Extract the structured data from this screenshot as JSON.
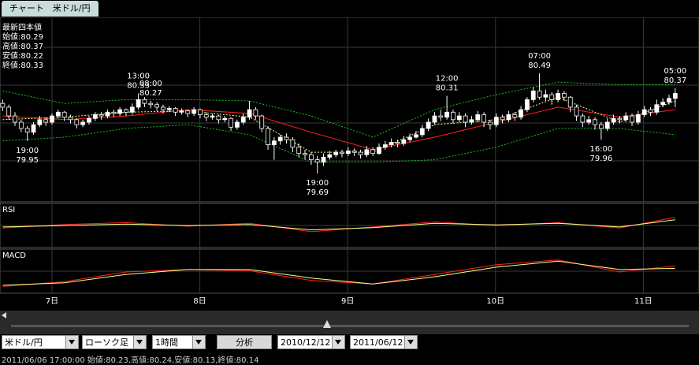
{
  "tab": "チャート　米ドル/円",
  "latest": {
    "title": "最新四本値",
    "rows": [
      {
        "label": "始値:",
        "value": 80.29
      },
      {
        "label": "高値:",
        "value": 80.37
      },
      {
        "label": "安値:",
        "value": 80.22
      },
      {
        "label": "終値:",
        "value": 80.33
      }
    ]
  },
  "chart_data": {
    "type": "candlestick",
    "ylim": [
      79.47,
      80.9
    ],
    "candles": [
      [
        80.25,
        80.28,
        80.19,
        80.22
      ],
      [
        80.22,
        80.24,
        80.12,
        80.15
      ],
      [
        80.15,
        80.18,
        80.07,
        80.1
      ],
      [
        80.1,
        80.12,
        80.02,
        80.05
      ],
      [
        80.05,
        80.07,
        79.95,
        80.02
      ],
      [
        80.02,
        80.1,
        80.0,
        80.08
      ],
      [
        80.08,
        80.15,
        80.06,
        80.12
      ],
      [
        80.12,
        80.14,
        80.07,
        80.1
      ],
      [
        80.1,
        80.17,
        80.08,
        80.15
      ],
      [
        80.15,
        80.2,
        80.13,
        80.18
      ],
      [
        80.18,
        80.19,
        80.11,
        80.14
      ],
      [
        80.14,
        80.16,
        80.09,
        80.12
      ],
      [
        80.12,
        80.13,
        80.05,
        80.08
      ],
      [
        80.08,
        80.12,
        80.06,
        80.1
      ],
      [
        80.1,
        80.15,
        80.08,
        80.13
      ],
      [
        80.13,
        80.18,
        80.11,
        80.16
      ],
      [
        80.16,
        80.18,
        80.12,
        80.15
      ],
      [
        80.15,
        80.2,
        80.13,
        80.18
      ],
      [
        80.18,
        80.2,
        80.14,
        80.17
      ],
      [
        80.17,
        80.22,
        80.15,
        80.2
      ],
      [
        80.2,
        80.21,
        80.15,
        80.18
      ],
      [
        80.18,
        80.25,
        80.16,
        80.22
      ],
      [
        80.22,
        80.33,
        80.2,
        80.28
      ],
      [
        80.28,
        80.3,
        80.22,
        80.25
      ],
      [
        80.25,
        80.27,
        80.21,
        80.24
      ],
      [
        80.24,
        80.26,
        80.19,
        80.22
      ],
      [
        80.22,
        80.24,
        80.17,
        80.2
      ],
      [
        80.2,
        80.23,
        80.18,
        80.21
      ],
      [
        80.21,
        80.22,
        80.15,
        80.18
      ],
      [
        80.18,
        80.21,
        80.16,
        80.19
      ],
      [
        80.19,
        80.2,
        80.14,
        80.17
      ],
      [
        80.17,
        80.22,
        80.15,
        80.2
      ],
      [
        80.2,
        80.21,
        80.13,
        80.16
      ],
      [
        80.16,
        80.18,
        80.11,
        80.14
      ],
      [
        80.14,
        80.17,
        80.12,
        80.15
      ],
      [
        80.15,
        80.16,
        80.09,
        80.12
      ],
      [
        80.12,
        80.15,
        80.1,
        80.13
      ],
      [
        80.13,
        80.14,
        80.03,
        80.06
      ],
      [
        80.06,
        80.12,
        80.04,
        80.1
      ],
      [
        80.1,
        80.17,
        80.08,
        80.14
      ],
      [
        80.14,
        80.27,
        80.12,
        80.2
      ],
      [
        80.2,
        80.22,
        80.12,
        80.15
      ],
      [
        80.15,
        80.16,
        80.02,
        80.05
      ],
      [
        80.05,
        80.07,
        79.88,
        79.92
      ],
      [
        79.92,
        79.98,
        79.8,
        79.95
      ],
      [
        79.95,
        80.0,
        79.92,
        79.98
      ],
      [
        79.98,
        80.01,
        79.93,
        79.96
      ],
      [
        79.96,
        79.98,
        79.86,
        79.9
      ],
      [
        79.9,
        79.93,
        79.82,
        79.85
      ],
      [
        79.85,
        79.88,
        79.8,
        79.84
      ],
      [
        79.84,
        79.86,
        79.76,
        79.8
      ],
      [
        79.8,
        79.83,
        79.69,
        79.78
      ],
      [
        79.78,
        79.85,
        79.75,
        79.82
      ],
      [
        79.82,
        79.87,
        79.8,
        79.84
      ],
      [
        79.84,
        79.88,
        79.82,
        79.86
      ],
      [
        79.86,
        79.88,
        79.82,
        79.85
      ],
      [
        79.85,
        79.9,
        79.83,
        79.87
      ],
      [
        79.87,
        79.89,
        79.83,
        79.86
      ],
      [
        79.86,
        79.88,
        79.81,
        79.84
      ],
      [
        79.84,
        79.91,
        79.82,
        79.88
      ],
      [
        79.88,
        79.9,
        79.83,
        79.85
      ],
      [
        79.85,
        79.93,
        79.84,
        79.9
      ],
      [
        79.9,
        79.95,
        79.88,
        79.92
      ],
      [
        79.92,
        79.97,
        79.9,
        79.94
      ],
      [
        79.94,
        79.96,
        79.9,
        79.93
      ],
      [
        79.93,
        79.99,
        79.91,
        79.96
      ],
      [
        79.96,
        80.01,
        79.94,
        79.98
      ],
      [
        79.98,
        80.03,
        79.97,
        80.0
      ],
      [
        80.0,
        80.08,
        79.98,
        80.05
      ],
      [
        80.05,
        80.13,
        80.03,
        80.1
      ],
      [
        80.1,
        80.18,
        80.08,
        80.15
      ],
      [
        80.15,
        80.2,
        80.11,
        80.14
      ],
      [
        80.14,
        80.31,
        80.12,
        80.18
      ],
      [
        80.18,
        80.2,
        80.09,
        80.12
      ],
      [
        80.12,
        80.18,
        80.1,
        80.15
      ],
      [
        80.15,
        80.17,
        80.06,
        80.1
      ],
      [
        80.1,
        80.15,
        80.08,
        80.12
      ],
      [
        80.12,
        80.19,
        80.1,
        80.16
      ],
      [
        80.16,
        80.18,
        80.06,
        80.1
      ],
      [
        80.1,
        80.12,
        80.04,
        80.08
      ],
      [
        80.08,
        80.17,
        80.06,
        80.14
      ],
      [
        80.14,
        80.16,
        80.09,
        80.12
      ],
      [
        80.12,
        80.19,
        80.1,
        80.16
      ],
      [
        80.16,
        80.18,
        80.11,
        80.14
      ],
      [
        80.14,
        80.23,
        80.12,
        80.2
      ],
      [
        80.2,
        80.3,
        80.18,
        80.28
      ],
      [
        80.28,
        80.38,
        80.26,
        80.35
      ],
      [
        80.35,
        80.49,
        80.28,
        80.3
      ],
      [
        80.3,
        80.36,
        80.27,
        80.32
      ],
      [
        80.32,
        80.34,
        80.24,
        80.28
      ],
      [
        80.28,
        80.36,
        80.26,
        80.33
      ],
      [
        80.33,
        80.35,
        80.27,
        80.3
      ],
      [
        80.3,
        80.31,
        80.18,
        80.22
      ],
      [
        80.22,
        80.24,
        80.11,
        80.15
      ],
      [
        80.15,
        80.17,
        80.06,
        80.1
      ],
      [
        80.1,
        80.15,
        80.08,
        80.12
      ],
      [
        80.12,
        80.14,
        80.04,
        80.08
      ],
      [
        80.08,
        80.1,
        79.96,
        80.05
      ],
      [
        80.05,
        80.13,
        80.03,
        80.1
      ],
      [
        80.1,
        80.16,
        80.08,
        80.13
      ],
      [
        80.13,
        80.15,
        80.09,
        80.12
      ],
      [
        80.12,
        80.18,
        80.1,
        80.15
      ],
      [
        80.15,
        80.17,
        80.07,
        80.1
      ],
      [
        80.1,
        80.19,
        80.08,
        80.16
      ],
      [
        80.16,
        80.23,
        80.14,
        80.2
      ],
      [
        80.2,
        80.22,
        80.15,
        80.18
      ],
      [
        80.18,
        80.28,
        80.16,
        80.24
      ],
      [
        80.24,
        80.29,
        80.22,
        80.26
      ],
      [
        80.26,
        80.32,
        80.24,
        80.29
      ],
      [
        80.29,
        80.37,
        80.22,
        80.33
      ]
    ],
    "high_labels": [
      {
        "time": "13:00",
        "price": 80.33
      },
      {
        "time": "08:00",
        "price": 80.27
      },
      {
        "time": "12:00",
        "price": 80.31
      },
      {
        "time": "07:00",
        "price": 80.49
      },
      {
        "time": "05:00",
        "price": 80.37
      }
    ],
    "low_labels": [
      {
        "time": "19:00",
        "price": 79.95
      },
      {
        "time": "19:00",
        "price": 79.69
      },
      {
        "time": "16:00",
        "price": 79.96
      }
    ],
    "indicator_x": [
      0,
      10,
      20,
      30,
      40,
      50,
      60,
      70,
      80,
      90,
      100,
      109
    ],
    "overlays": [
      {
        "color": "#ff2020",
        "dash": false,
        "values": [
          80.15,
          80.12,
          80.15,
          80.2,
          80.17,
          80.02,
          79.88,
          79.98,
          80.1,
          80.22,
          80.14,
          80.2
        ]
      },
      {
        "color": "#ffff80",
        "dash": true,
        "values": [
          80.12,
          80.14,
          80.18,
          80.19,
          80.14,
          79.86,
          79.86,
          80.08,
          80.12,
          80.3,
          80.1,
          80.27
        ]
      },
      {
        "color": "#20c020",
        "dash": true,
        "values": [
          80.35,
          80.25,
          80.28,
          80.28,
          80.27,
          80.15,
          79.98,
          80.2,
          80.32,
          80.42,
          80.4,
          80.4
        ]
      },
      {
        "color": "#20c020",
        "dash": true,
        "values": [
          79.95,
          79.98,
          80.05,
          80.08,
          80.0,
          79.78,
          79.78,
          79.8,
          79.9,
          80.05,
          80.05,
          80.0
        ]
      }
    ],
    "rsi": {
      "title": "RSI",
      "ylim": [
        0,
        100
      ],
      "series": [
        {
          "color": "#ff2020",
          "values": [
            45,
            55,
            60,
            50,
            58,
            35,
            48,
            62,
            52,
            60,
            45,
            75
          ]
        },
        {
          "color": "#ffff80",
          "values": [
            48,
            52,
            56,
            52,
            55,
            40,
            46,
            58,
            54,
            58,
            48,
            68
          ]
        }
      ]
    },
    "macd": {
      "title": "MACD",
      "ylim": [
        -0.15,
        0.15
      ],
      "series": [
        {
          "color": "#ff2020",
          "values": [
            -0.12,
            -0.08,
            0.0,
            0.02,
            0.01,
            -0.07,
            -0.1,
            -0.02,
            0.06,
            0.1,
            0.0,
            0.05
          ]
        },
        {
          "color": "#ffff80",
          "values": [
            -0.11,
            -0.09,
            -0.02,
            0.02,
            0.02,
            -0.05,
            -0.1,
            -0.04,
            0.04,
            0.09,
            0.02,
            0.03
          ]
        }
      ]
    },
    "categories": [
      "7日",
      "8日",
      "9日",
      "10日",
      "11日"
    ]
  },
  "controls": {
    "pair": "米ドル/円",
    "chart_type": "ローソク足",
    "period": "1時間",
    "button": "分析",
    "from": "2010/12/12",
    "to": "2011/06/12"
  },
  "status": "2011/06/06 17:00:00 始値:80.23,高値:80.24,安値:80.13,終値:80.14"
}
